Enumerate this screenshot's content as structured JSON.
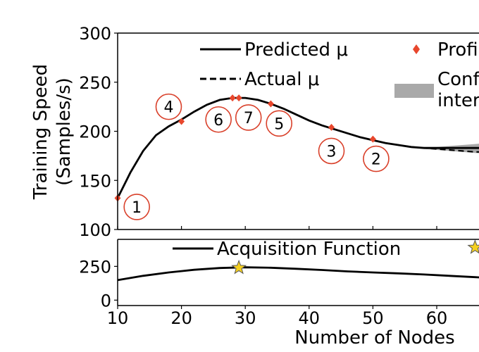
{
  "chart_data": [
    {
      "type": "line",
      "panel": "top",
      "ylabel_line1": "Training Speed",
      "ylabel_line2": "(Samples/s)",
      "ylim": [
        100,
        300
      ],
      "xlim": [
        10,
        68
      ],
      "yticks": [
        "100",
        "150",
        "200",
        "250",
        "300"
      ],
      "grid": false,
      "legend": {
        "placement": "top",
        "entries": [
          {
            "label": "Predicted μ",
            "style": "solid-line"
          },
          {
            "label": "Actual μ",
            "style": "dashed-line"
          },
          {
            "label": "Profi",
            "style": "red-diamond"
          },
          {
            "label_line1": "Conf",
            "label_line2": "inter",
            "style": "gray-band"
          }
        ]
      },
      "series": [
        {
          "name": "Predicted μ",
          "x": [
            10,
            12,
            14,
            16,
            18,
            20,
            22,
            24,
            26,
            28,
            30,
            32,
            34,
            36,
            38,
            40,
            42,
            44,
            46,
            48,
            50,
            52,
            54,
            56,
            58,
            60,
            62,
            64,
            66,
            68
          ],
          "values": [
            132,
            158,
            180,
            196,
            205,
            212,
            220,
            227,
            232,
            234,
            234,
            232,
            228,
            223,
            217,
            211,
            206,
            202,
            198,
            194,
            191,
            188,
            186,
            184,
            183,
            183,
            183,
            183,
            183,
            183
          ]
        },
        {
          "name": "Actual μ",
          "x": [
            10,
            12,
            14,
            16,
            18,
            20,
            22,
            24,
            26,
            28,
            30,
            32,
            34,
            36,
            38,
            40,
            42,
            44,
            46,
            48,
            50,
            52,
            54,
            56,
            58,
            60,
            62,
            64,
            66,
            68
          ],
          "values": [
            132,
            158,
            180,
            196,
            205,
            212,
            220,
            227,
            232,
            234,
            234,
            232,
            228,
            223,
            217,
            211,
            206,
            202,
            198,
            194,
            191,
            188,
            186,
            184,
            183,
            182,
            181,
            180,
            179,
            179
          ]
        }
      ],
      "confidence_band": {
        "x": [
          52,
          54,
          56,
          58,
          60,
          62,
          64,
          66,
          68
        ],
        "lower": [
          188,
          186,
          184,
          182,
          181,
          180,
          179,
          178,
          177
        ],
        "upper": [
          188,
          186,
          184,
          184,
          184,
          185,
          186,
          187,
          188
        ]
      },
      "profiled_points": {
        "x": [
          10,
          20,
          28,
          29,
          34,
          43.5,
          50
        ],
        "y": [
          132,
          210,
          234,
          234,
          228,
          204,
          192
        ]
      },
      "annotations": [
        {
          "label": "1",
          "x": 13,
          "y": 123
        },
        {
          "label": "4",
          "x": 18,
          "y": 225
        },
        {
          "label": "6",
          "x": 25.8,
          "y": 212
        },
        {
          "label": "7",
          "x": 30.5,
          "y": 214
        },
        {
          "label": "5",
          "x": 35.3,
          "y": 208
        },
        {
          "label": "3",
          "x": 43.5,
          "y": 180
        },
        {
          "label": "2",
          "x": 50.5,
          "y": 172
        }
      ]
    },
    {
      "type": "line",
      "panel": "bottom",
      "xlabel": "Number of Nodes",
      "xlim": [
        10,
        68
      ],
      "ylim": [
        -40,
        450
      ],
      "xticks": [
        "10",
        "20",
        "30",
        "40",
        "50",
        "60"
      ],
      "yticks": [
        "0",
        "250"
      ],
      "grid": false,
      "legend": {
        "placement": "top",
        "entries": [
          {
            "label": "Acquisition Function",
            "style": "solid-line"
          }
        ]
      },
      "series": [
        {
          "name": "Acquisition Function",
          "x": [
            10,
            14,
            18,
            22,
            26,
            30,
            34,
            38,
            42,
            46,
            50,
            54,
            58,
            62,
            66,
            68
          ],
          "values": [
            148,
            180,
            205,
            225,
            238,
            243,
            240,
            232,
            223,
            213,
            205,
            198,
            190,
            180,
            170,
            165
          ]
        }
      ],
      "stars": {
        "x": [
          29,
          66
        ],
        "y": [
          240,
          390
        ]
      }
    }
  ]
}
